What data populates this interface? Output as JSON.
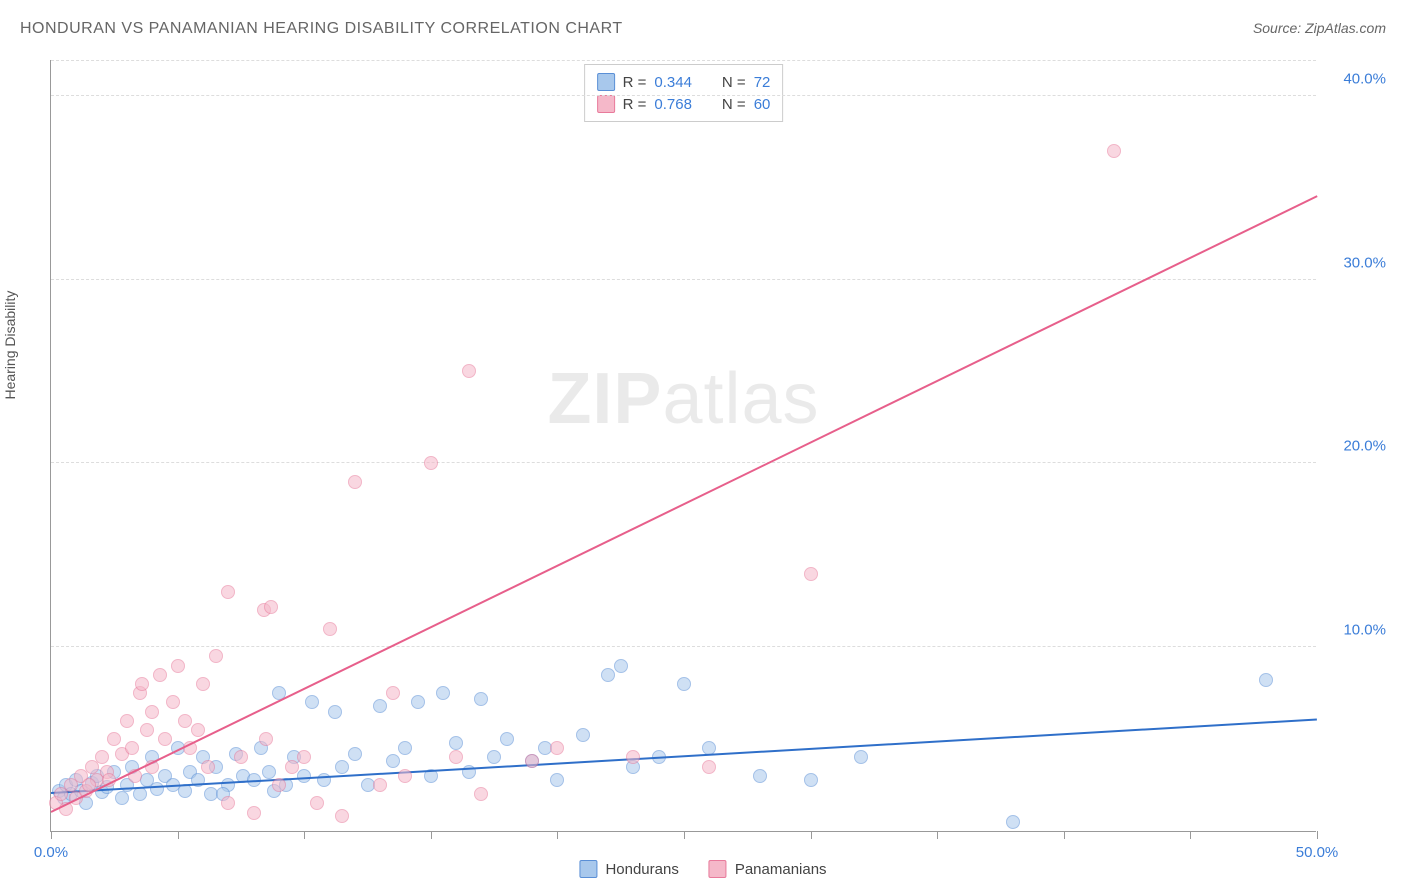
{
  "title": "HONDURAN VS PANAMANIAN HEARING DISABILITY CORRELATION CHART",
  "source": "Source: ZipAtlas.com",
  "y_axis_label": "Hearing Disability",
  "watermark": {
    "part1": "ZIP",
    "part2": "atlas"
  },
  "chart": {
    "type": "scatter",
    "xlim": [
      0,
      50
    ],
    "ylim": [
      0,
      42
    ],
    "x_ticks": [
      0,
      5,
      10,
      15,
      20,
      25,
      30,
      35,
      40,
      45,
      50
    ],
    "x_tick_labels": {
      "0": "0.0%",
      "50": "50.0%"
    },
    "y_ticks": [
      10,
      20,
      30,
      40
    ],
    "y_tick_labels": [
      "10.0%",
      "20.0%",
      "30.0%",
      "40.0%"
    ],
    "grid_color": "#dddddd",
    "background_color": "#ffffff",
    "axis_color": "#999999",
    "tick_label_color": "#3b7dd8",
    "tick_label_fontsize": 15,
    "marker_size": 14,
    "marker_opacity": 0.55,
    "series": [
      {
        "name": "Hondurans",
        "fill": "#a8c8ec",
        "stroke": "#5a8fd6",
        "line_color": "#2f6fc9",
        "R": "0.344",
        "N": "72",
        "trend": {
          "x1": 0,
          "y1": 2.0,
          "x2": 50,
          "y2": 6.0
        },
        "points": [
          [
            0.3,
            2.2
          ],
          [
            0.5,
            1.8
          ],
          [
            0.6,
            2.5
          ],
          [
            0.8,
            2.0
          ],
          [
            1.0,
            2.8
          ],
          [
            1.2,
            2.2
          ],
          [
            1.4,
            1.5
          ],
          [
            1.6,
            2.6
          ],
          [
            1.8,
            3.0
          ],
          [
            2.0,
            2.1
          ],
          [
            2.2,
            2.4
          ],
          [
            2.5,
            3.2
          ],
          [
            2.8,
            1.8
          ],
          [
            3.0,
            2.5
          ],
          [
            3.2,
            3.5
          ],
          [
            3.5,
            2.0
          ],
          [
            3.8,
            2.8
          ],
          [
            4.0,
            4.0
          ],
          [
            4.2,
            2.3
          ],
          [
            4.5,
            3.0
          ],
          [
            4.8,
            2.5
          ],
          [
            5.0,
            4.5
          ],
          [
            5.3,
            2.2
          ],
          [
            5.5,
            3.2
          ],
          [
            5.8,
            2.8
          ],
          [
            6.0,
            4.0
          ],
          [
            6.3,
            2.0
          ],
          [
            6.5,
            3.5
          ],
          [
            7.0,
            2.5
          ],
          [
            7.3,
            4.2
          ],
          [
            7.6,
            3.0
          ],
          [
            8.0,
            2.8
          ],
          [
            8.3,
            4.5
          ],
          [
            8.6,
            3.2
          ],
          [
            9.0,
            7.5
          ],
          [
            9.3,
            2.5
          ],
          [
            9.6,
            4.0
          ],
          [
            10.0,
            3.0
          ],
          [
            10.3,
            7.0
          ],
          [
            10.8,
            2.8
          ],
          [
            11.2,
            6.5
          ],
          [
            11.5,
            3.5
          ],
          [
            12.0,
            4.2
          ],
          [
            12.5,
            2.5
          ],
          [
            13.0,
            6.8
          ],
          [
            13.5,
            3.8
          ],
          [
            14.0,
            4.5
          ],
          [
            14.5,
            7.0
          ],
          [
            15.0,
            3.0
          ],
          [
            15.5,
            7.5
          ],
          [
            16.0,
            4.8
          ],
          [
            16.5,
            3.2
          ],
          [
            17.0,
            7.2
          ],
          [
            17.5,
            4.0
          ],
          [
            18.0,
            5.0
          ],
          [
            19.0,
            3.8
          ],
          [
            19.5,
            4.5
          ],
          [
            20.0,
            2.8
          ],
          [
            21.0,
            5.2
          ],
          [
            22.0,
            8.5
          ],
          [
            23.0,
            3.5
          ],
          [
            24.0,
            4.0
          ],
          [
            25.0,
            8.0
          ],
          [
            26.0,
            4.5
          ],
          [
            28.0,
            3.0
          ],
          [
            30.0,
            2.8
          ],
          [
            32.0,
            4.0
          ],
          [
            38.0,
            0.5
          ],
          [
            48.0,
            8.2
          ],
          [
            22.5,
            9.0
          ],
          [
            6.8,
            2.0
          ],
          [
            8.8,
            2.2
          ]
        ]
      },
      {
        "name": "Panamanians",
        "fill": "#f5b8c9",
        "stroke": "#e87a9b",
        "line_color": "#e75f8b",
        "R": "0.768",
        "N": "60",
        "trend": {
          "x1": 0,
          "y1": 1.0,
          "x2": 50,
          "y2": 34.5
        },
        "points": [
          [
            0.2,
            1.5
          ],
          [
            0.4,
            2.0
          ],
          [
            0.6,
            1.2
          ],
          [
            0.8,
            2.5
          ],
          [
            1.0,
            1.8
          ],
          [
            1.2,
            3.0
          ],
          [
            1.4,
            2.2
          ],
          [
            1.6,
            3.5
          ],
          [
            1.8,
            2.8
          ],
          [
            2.0,
            4.0
          ],
          [
            2.2,
            3.2
          ],
          [
            2.5,
            5.0
          ],
          [
            2.8,
            4.2
          ],
          [
            3.0,
            6.0
          ],
          [
            3.2,
            4.5
          ],
          [
            3.5,
            7.5
          ],
          [
            3.6,
            8.0
          ],
          [
            3.8,
            5.5
          ],
          [
            4.0,
            6.5
          ],
          [
            4.3,
            8.5
          ],
          [
            4.5,
            5.0
          ],
          [
            4.8,
            7.0
          ],
          [
            5.0,
            9.0
          ],
          [
            5.3,
            6.0
          ],
          [
            5.5,
            4.5
          ],
          [
            5.8,
            5.5
          ],
          [
            6.0,
            8.0
          ],
          [
            6.2,
            3.5
          ],
          [
            6.5,
            9.5
          ],
          [
            7.0,
            1.5
          ],
          [
            7.0,
            13.0
          ],
          [
            7.5,
            4.0
          ],
          [
            8.0,
            1.0
          ],
          [
            8.4,
            12.0
          ],
          [
            8.5,
            5.0
          ],
          [
            8.7,
            12.2
          ],
          [
            9.0,
            2.5
          ],
          [
            9.5,
            3.5
          ],
          [
            10.0,
            4.0
          ],
          [
            10.5,
            1.5
          ],
          [
            11.0,
            11.0
          ],
          [
            11.5,
            0.8
          ],
          [
            12.0,
            19.0
          ],
          [
            13.0,
            2.5
          ],
          [
            13.5,
            7.5
          ],
          [
            14.0,
            3.0
          ],
          [
            15.0,
            20.0
          ],
          [
            16.0,
            4.0
          ],
          [
            16.5,
            25.0
          ],
          [
            17.0,
            2.0
          ],
          [
            19.0,
            3.8
          ],
          [
            20.0,
            4.5
          ],
          [
            23.0,
            4.0
          ],
          [
            26.0,
            3.5
          ],
          [
            30.0,
            14.0
          ],
          [
            42.0,
            37.0
          ],
          [
            1.5,
            2.5
          ],
          [
            2.3,
            2.8
          ],
          [
            3.3,
            3.0
          ],
          [
            4.0,
            3.5
          ]
        ]
      }
    ]
  },
  "legend_top": {
    "rows": [
      {
        "swatch_fill": "#a8c8ec",
        "swatch_stroke": "#5a8fd6",
        "r_label": "R =",
        "r_value": "0.344",
        "n_label": "N =",
        "n_value": "72"
      },
      {
        "swatch_fill": "#f5b8c9",
        "swatch_stroke": "#e87a9b",
        "r_label": "R =",
        "r_value": "0.768",
        "n_label": "N =",
        "n_value": "60"
      }
    ]
  },
  "legend_bottom": {
    "items": [
      {
        "swatch_fill": "#a8c8ec",
        "swatch_stroke": "#5a8fd6",
        "label": "Hondurans"
      },
      {
        "swatch_fill": "#f5b8c9",
        "swatch_stroke": "#e87a9b",
        "label": "Panamanians"
      }
    ]
  }
}
